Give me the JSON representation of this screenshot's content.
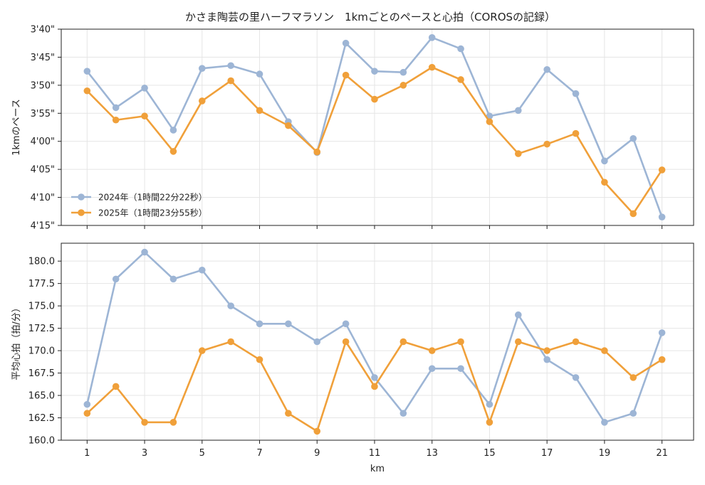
{
  "chart_data": [
    {
      "type": "line",
      "title": "かさま陶芸の里ハーフマラソン　1kmごとのペースと心拍（COROSの記録）",
      "xlabel": "",
      "ylabel": "1kmのペース",
      "y_unit": "seconds per km",
      "y_inverted": true,
      "ylim": [
        220,
        255
      ],
      "yticks": [
        220,
        225,
        230,
        235,
        240,
        245,
        250,
        255
      ],
      "ytick_labels": [
        "3'40\"",
        "3'45\"",
        "3'50\"",
        "3'55\"",
        "4'00\"",
        "4'05\"",
        "4'10\"",
        "4'15\""
      ],
      "x": [
        1,
        2,
        3,
        4,
        5,
        6,
        7,
        8,
        9,
        10,
        11,
        12,
        13,
        14,
        15,
        16,
        17,
        18,
        19,
        20,
        21
      ],
      "xlim": [
        0.1,
        22.1
      ],
      "grid": true,
      "legend_position": "lower-left",
      "series": [
        {
          "name": "2024年（1時間22分22秒）",
          "color": "#9db5d5",
          "values": [
            227.5,
            234.0,
            230.5,
            238.0,
            227.0,
            226.5,
            228.0,
            236.5,
            242.0,
            222.5,
            227.5,
            227.7,
            221.5,
            223.5,
            235.5,
            234.5,
            227.2,
            231.5,
            243.5,
            239.5,
            253.5
          ]
        },
        {
          "name": "2025年（1時間23分55秒）",
          "color": "#f0a03a",
          "values": [
            231.0,
            236.2,
            235.5,
            241.8,
            232.8,
            229.2,
            234.5,
            237.2,
            241.9,
            228.2,
            232.5,
            230.0,
            226.8,
            229.0,
            236.5,
            242.2,
            240.5,
            238.6,
            247.3,
            252.9,
            245.1
          ]
        }
      ]
    },
    {
      "type": "line",
      "title": "",
      "xlabel": "km",
      "ylabel": "平均心拍（拍/分）",
      "ylim": [
        160,
        182
      ],
      "yticks": [
        160.0,
        162.5,
        165.0,
        167.5,
        170.0,
        172.5,
        175.0,
        177.5,
        180.0
      ],
      "ytick_labels": [
        "160.0",
        "162.5",
        "165.0",
        "167.5",
        "170.0",
        "172.5",
        "175.0",
        "177.5",
        "180.0"
      ],
      "x": [
        1,
        2,
        3,
        4,
        5,
        6,
        7,
        8,
        9,
        10,
        11,
        12,
        13,
        14,
        15,
        16,
        17,
        18,
        19,
        20,
        21
      ],
      "xticks": [
        1,
        3,
        5,
        7,
        9,
        11,
        13,
        15,
        17,
        19,
        21
      ],
      "xtick_labels": [
        "1",
        "3",
        "5",
        "7",
        "9",
        "11",
        "13",
        "15",
        "17",
        "19",
        "21"
      ],
      "xlim": [
        0.1,
        22.1
      ],
      "grid": true,
      "series": [
        {
          "name": "2024年（1時間22分22秒）",
          "color": "#9db5d5",
          "values": [
            164,
            178,
            181,
            178,
            179,
            175,
            173,
            173,
            171,
            173,
            167,
            163,
            168,
            168,
            164,
            174,
            169,
            167,
            162,
            163,
            172
          ]
        },
        {
          "name": "2025年（1時間23分55秒）",
          "color": "#f0a03a",
          "values": [
            163,
            166,
            162,
            162,
            170,
            171,
            169,
            163,
            161,
            171,
            166,
            171,
            170,
            171,
            162,
            171,
            170,
            171,
            170,
            167,
            169
          ]
        }
      ]
    }
  ]
}
